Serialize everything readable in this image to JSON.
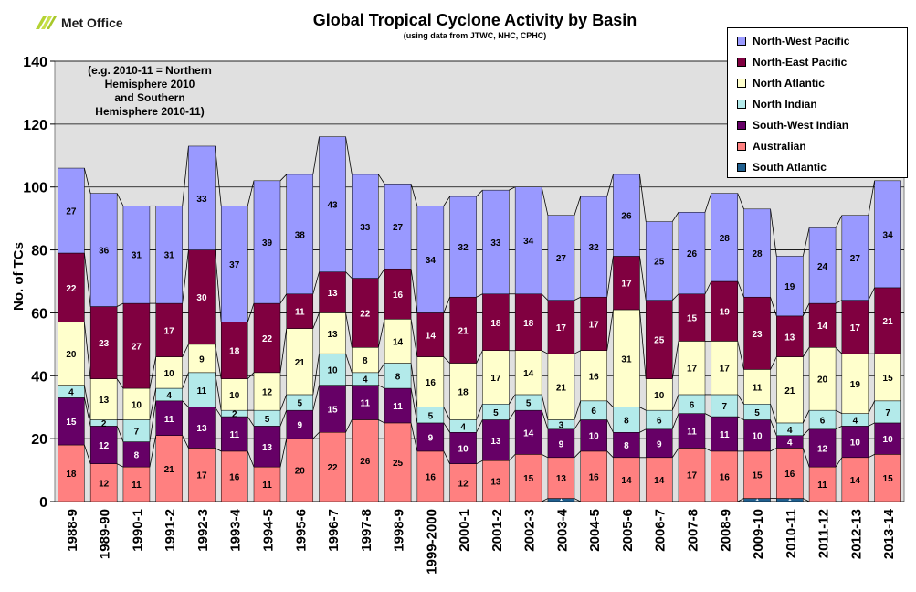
{
  "header": {
    "logo_text": "Met Office",
    "title": "Global Tropical Cyclone Activity by Basin",
    "subtitle": "(using data from JTWC, NHC, CPHC)",
    "note": "(e.g. 2010-11  = Northern\nHemisphere 2010\nand Southern\nHemisphere 2010-11)"
  },
  "colors": {
    "South Atlantic": "#1f5f8f",
    "Australian": "#ff8080",
    "South-West Indian": "#660066",
    "North Indian": "#b3eaea",
    "North Atlantic": "#ffffcc",
    "North-East Pacific": "#800040",
    "North-West Pacific": "#9999ff",
    "plot_bg": "#e0e0e0"
  },
  "chart_data": {
    "type": "bar",
    "stacked": true,
    "title": "Global Tropical Cyclone Activity by Basin",
    "ylabel": "No. of TCs",
    "xlabel": "",
    "ylim": [
      0,
      140
    ],
    "yticks": [
      0,
      20,
      40,
      60,
      80,
      100,
      120,
      140
    ],
    "grid": true,
    "legend_position": "top-right",
    "categories": [
      "1988-9",
      "1989-90",
      "1990-1",
      "1991-2",
      "1992-3",
      "1993-4",
      "1994-5",
      "1995-6",
      "1996-7",
      "1997-8",
      "1998-9",
      "1999-2000",
      "2000-1",
      "2001-2",
      "2002-3",
      "2003-4",
      "2004-5",
      "2005-6",
      "2006-7",
      "2007-8",
      "2008-9",
      "2009-10",
      "2010-11",
      "2011-12",
      "2012-13",
      "2013-14"
    ],
    "series": [
      {
        "name": "South Atlantic",
        "values": [
          0,
          0,
          0,
          0,
          0,
          0,
          0,
          0,
          0,
          0,
          0,
          0,
          0,
          0,
          0,
          1,
          0,
          0,
          0,
          0,
          0,
          1,
          1,
          0,
          0,
          0
        ]
      },
      {
        "name": "Australian",
        "values": [
          18,
          12,
          11,
          21,
          17,
          16,
          11,
          20,
          22,
          26,
          25,
          16,
          12,
          13,
          15,
          13,
          16,
          14,
          14,
          17,
          16,
          15,
          16,
          11,
          14,
          15
        ]
      },
      {
        "name": "South-West Indian",
        "values": [
          15,
          12,
          8,
          11,
          13,
          11,
          13,
          9,
          15,
          11,
          11,
          9,
          10,
          13,
          14,
          9,
          10,
          8,
          9,
          11,
          11,
          10,
          4,
          12,
          10,
          10
        ]
      },
      {
        "name": "North Indian",
        "values": [
          4,
          2,
          7,
          4,
          11,
          2,
          5,
          5,
          10,
          4,
          8,
          5,
          4,
          5,
          5,
          3,
          6,
          8,
          6,
          6,
          7,
          5,
          4,
          6,
          4,
          7
        ]
      },
      {
        "name": "North Atlantic",
        "values": [
          20,
          13,
          10,
          10,
          9,
          10,
          12,
          21,
          13,
          8,
          14,
          16,
          18,
          17,
          14,
          21,
          16,
          31,
          10,
          17,
          17,
          11,
          21,
          20,
          19,
          15
        ]
      },
      {
        "name": "North-East Pacific",
        "values": [
          22,
          23,
          27,
          17,
          30,
          18,
          22,
          11,
          13,
          22,
          16,
          14,
          21,
          18,
          18,
          17,
          17,
          17,
          25,
          15,
          19,
          23,
          13,
          14,
          17,
          21
        ]
      },
      {
        "name": "North-West Pacific",
        "values": [
          27,
          36,
          31,
          31,
          33,
          37,
          39,
          38,
          43,
          33,
          27,
          34,
          32,
          33,
          34,
          27,
          32,
          26,
          25,
          26,
          28,
          28,
          19,
          24,
          27,
          34
        ]
      }
    ],
    "legend_order": [
      "North-West Pacific",
      "North-East Pacific",
      "North Atlantic",
      "North Indian",
      "South-West Indian",
      "Australian",
      "South Atlantic"
    ]
  }
}
